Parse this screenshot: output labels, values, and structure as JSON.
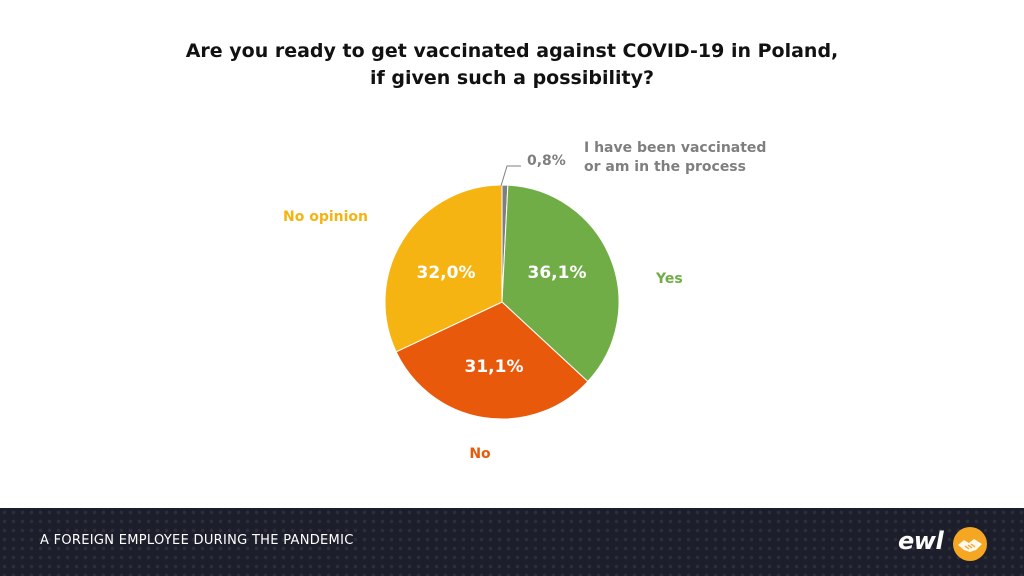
{
  "chart_data": {
    "type": "pie",
    "title_lines": [
      "Are you ready to get vaccinated against COVID-19 in Poland,",
      "if given such a possibility?"
    ],
    "slices": [
      {
        "label": "I have been vaccinated or am in the process",
        "label_lines": [
          "I have been vaccinated",
          "or am in the process"
        ],
        "value": 0.8,
        "value_text": "0,8%",
        "color": "#7f7f7f"
      },
      {
        "label": "Yes",
        "label_lines": [
          "Yes"
        ],
        "value": 36.1,
        "value_text": "36,1%",
        "color": "#70ad47"
      },
      {
        "label": "No",
        "label_lines": [
          "No"
        ],
        "value": 31.1,
        "value_text": "31,1%",
        "color": "#e8590c"
      },
      {
        "label": "No opinion",
        "label_lines": [
          "No opinion"
        ],
        "value": 32.0,
        "value_text": "32,0%",
        "color": "#f5b412"
      }
    ]
  },
  "footer": {
    "text": "A FOREIGN EMPLOYEE DURING THE PANDEMIC",
    "logo_text": "ewl",
    "logo_icon": "handshake-icon",
    "background": "#1c1f2b",
    "accent": "#f5a623"
  }
}
